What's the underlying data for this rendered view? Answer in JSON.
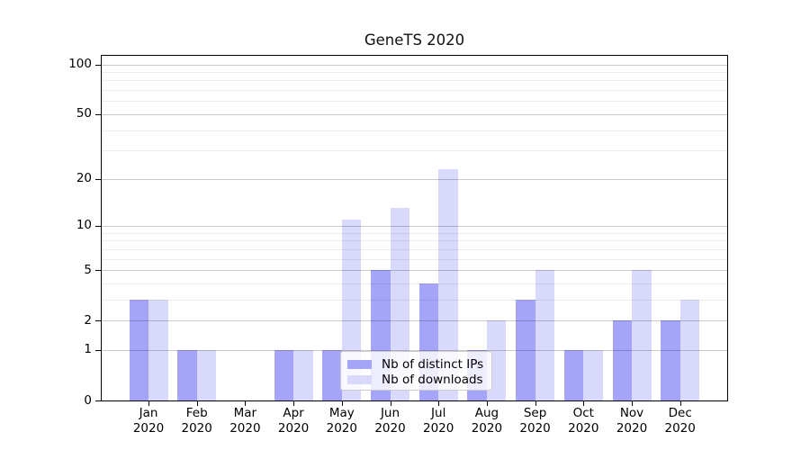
{
  "chart_data": {
    "type": "bar",
    "title": "GeneTS 2020",
    "categories": [
      {
        "month": "Jan",
        "year": "2020"
      },
      {
        "month": "Feb",
        "year": "2020"
      },
      {
        "month": "Mar",
        "year": "2020"
      },
      {
        "month": "Apr",
        "year": "2020"
      },
      {
        "month": "May",
        "year": "2020"
      },
      {
        "month": "Jun",
        "year": "2020"
      },
      {
        "month": "Jul",
        "year": "2020"
      },
      {
        "month": "Aug",
        "year": "2020"
      },
      {
        "month": "Sep",
        "year": "2020"
      },
      {
        "month": "Oct",
        "year": "2020"
      },
      {
        "month": "Nov",
        "year": "2020"
      },
      {
        "month": "Dec",
        "year": "2020"
      }
    ],
    "series": [
      {
        "name": "Nb of distinct IPs",
        "color": "#a4a4f9",
        "values": [
          3,
          1,
          0,
          1,
          1,
          5,
          4,
          1,
          3,
          1,
          2,
          2
        ]
      },
      {
        "name": "Nb of downloads",
        "color": "#d9d9fb",
        "values": [
          3,
          1,
          0,
          1,
          11,
          13,
          23,
          2,
          5,
          1,
          5,
          3
        ]
      }
    ],
    "y_axis": {
      "scale": "log1p",
      "tick_values": [
        0,
        1,
        2,
        5,
        10,
        20,
        50,
        100
      ],
      "tick_labels": [
        "0",
        "1",
        "2",
        "5",
        "10",
        "20",
        "50",
        "100"
      ],
      "minor_tick_values": [
        3,
        4,
        6,
        7,
        8,
        9,
        30,
        40,
        60,
        70,
        80,
        90
      ],
      "range_top": 115
    },
    "grid": {
      "on": true,
      "major_color": "#c9c9c9",
      "minor_color": "#ececec"
    },
    "legend_position": "inside-bottom-center"
  }
}
